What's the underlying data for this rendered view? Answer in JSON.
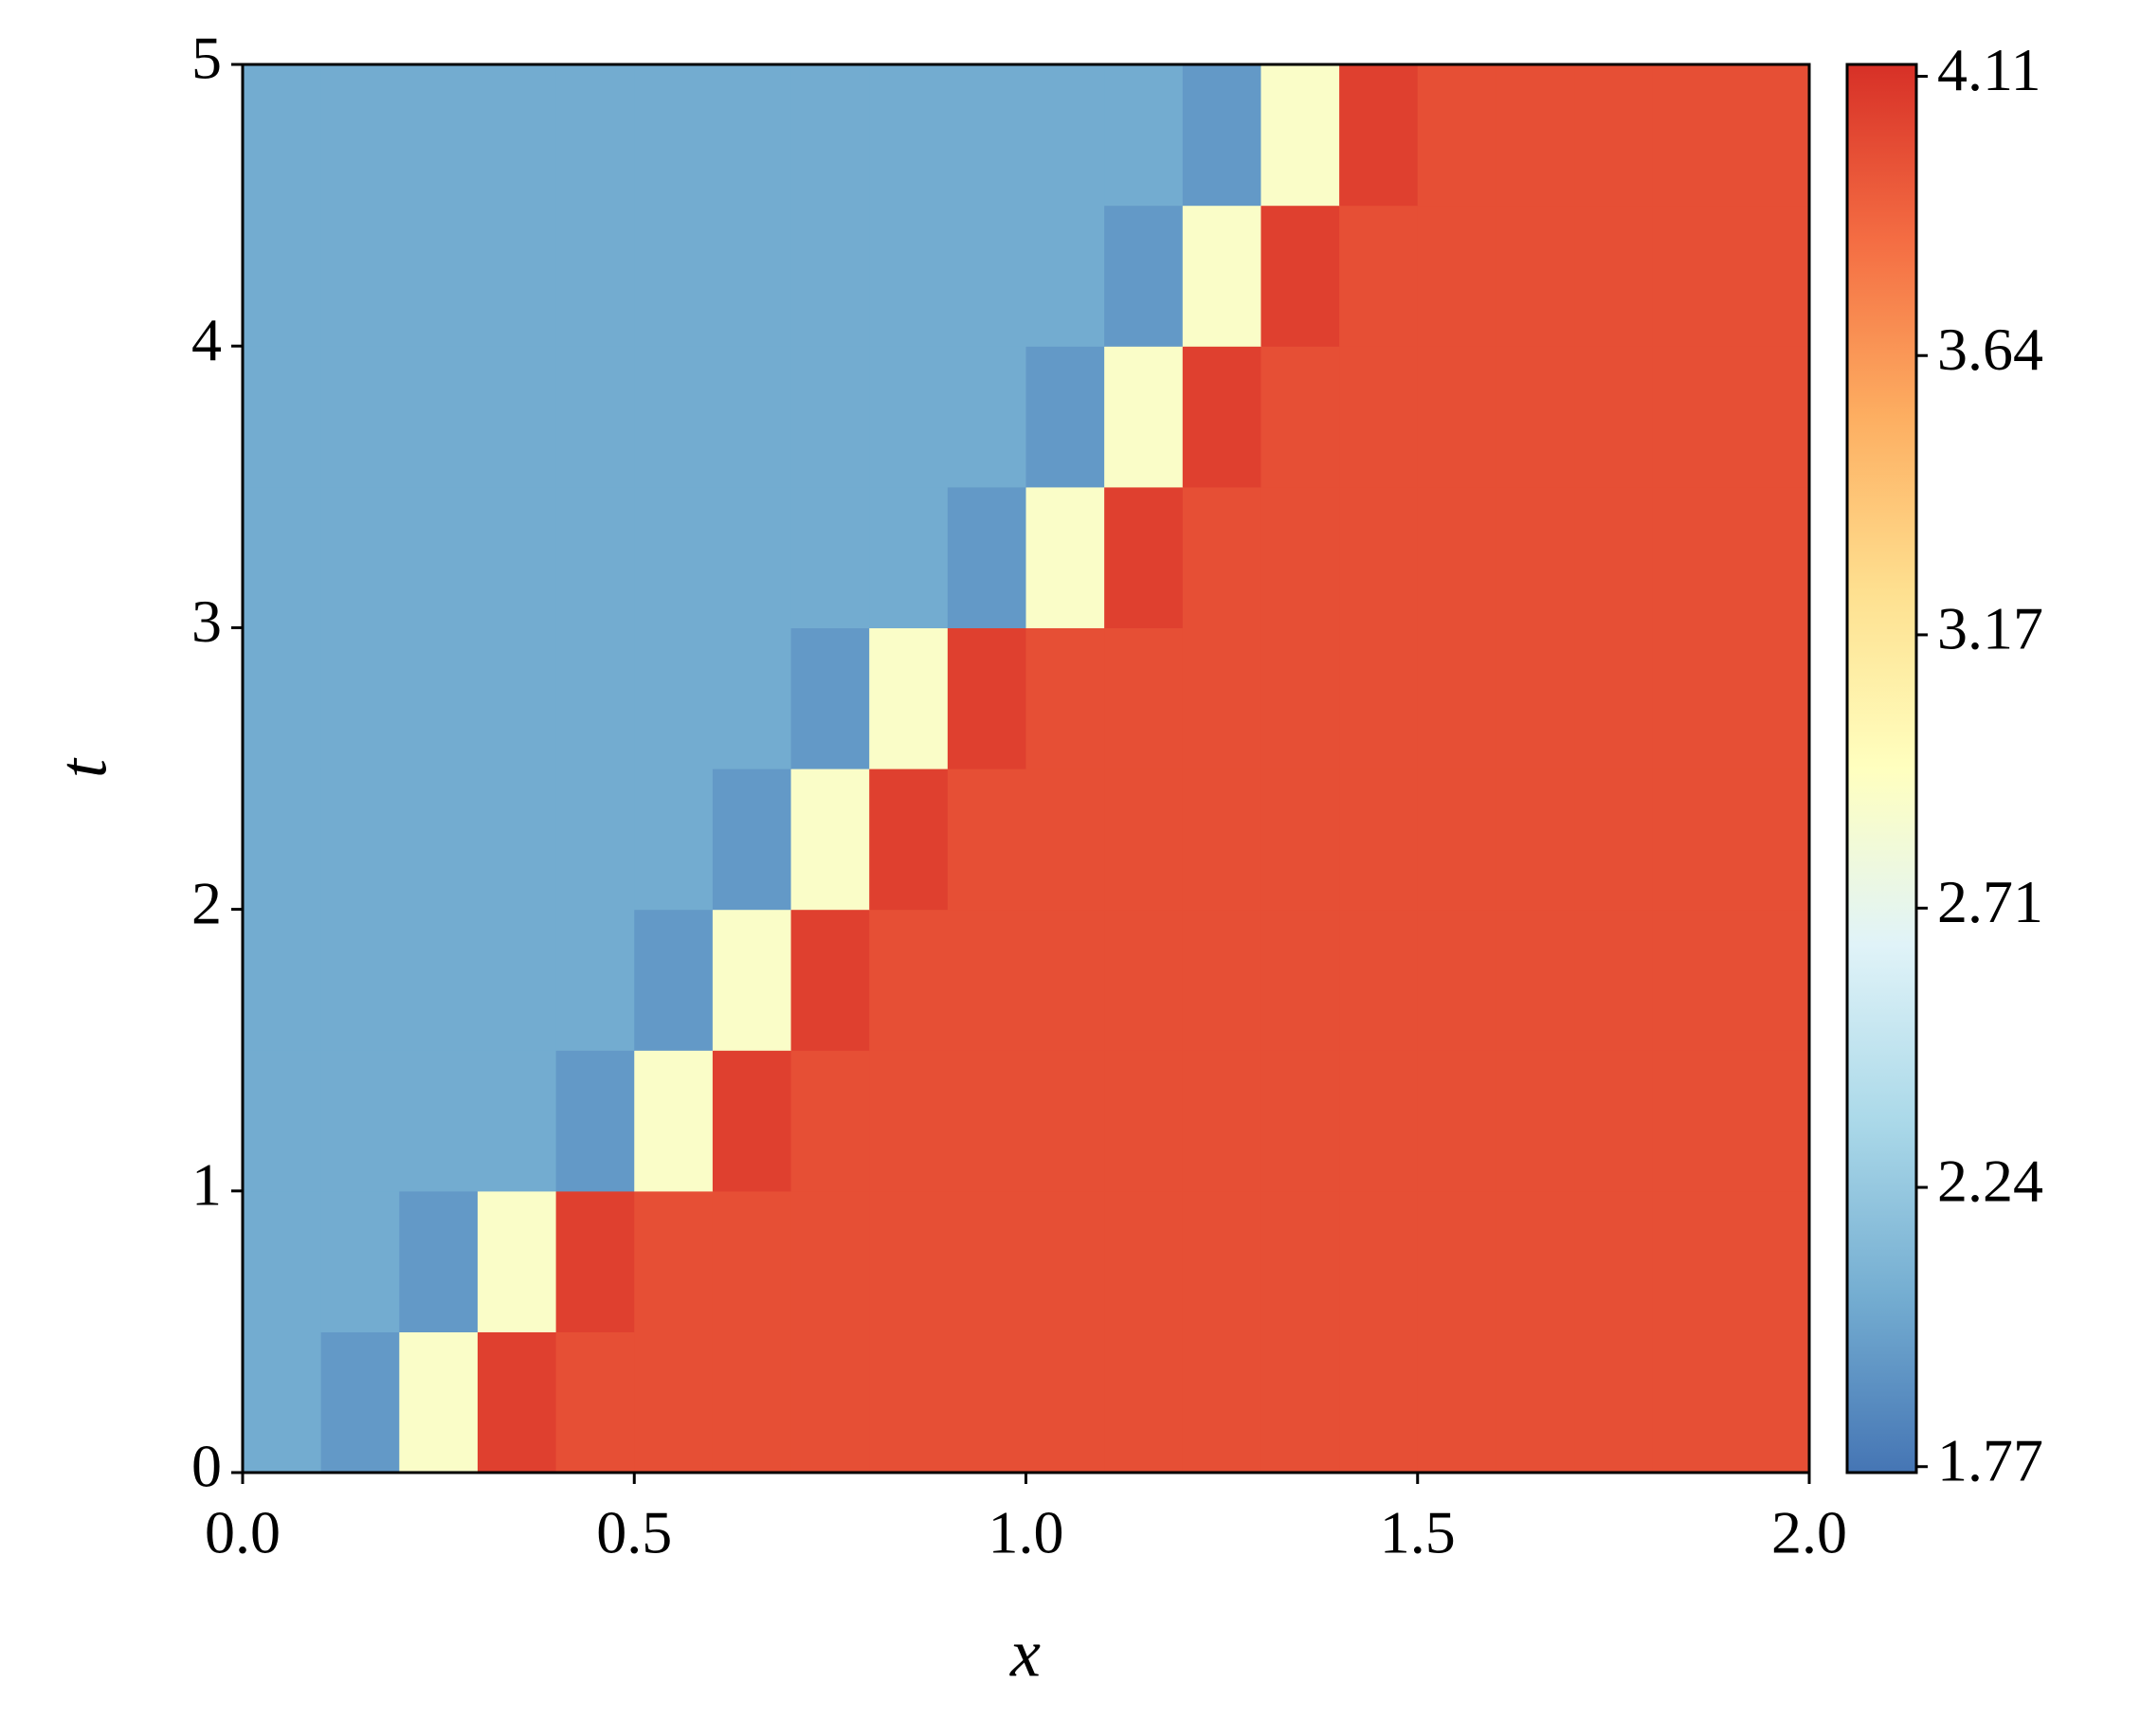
{
  "chart_data": {
    "type": "heatmap",
    "xlabel": "x",
    "ylabel": "t",
    "x": [
      0.05,
      0.15,
      0.25,
      0.35,
      0.45,
      0.55,
      0.65,
      0.75,
      0.85,
      0.95,
      1.05,
      1.15,
      1.25,
      1.35,
      1.45,
      1.55,
      1.65,
      1.75,
      1.85,
      1.95
    ],
    "y": [
      0.25,
      0.75,
      1.25,
      1.75,
      2.25,
      2.75,
      3.25,
      3.75,
      4.25,
      4.75
    ],
    "z": [
      [
        2.05,
        1.95,
        2.9,
        4.05,
        3.98,
        3.98,
        3.98,
        3.98,
        3.98,
        3.98,
        3.98,
        3.98,
        3.98,
        3.98,
        3.98,
        3.98,
        3.98,
        3.98,
        3.98,
        3.98
      ],
      [
        2.05,
        2.05,
        1.95,
        2.9,
        4.05,
        3.98,
        3.98,
        3.98,
        3.98,
        3.98,
        3.98,
        3.98,
        3.98,
        3.98,
        3.98,
        3.98,
        3.98,
        3.98,
        3.98,
        3.98
      ],
      [
        2.05,
        2.05,
        2.05,
        2.05,
        1.95,
        2.9,
        4.05,
        3.98,
        3.98,
        3.98,
        3.98,
        3.98,
        3.98,
        3.98,
        3.98,
        3.98,
        3.98,
        3.98,
        3.98,
        3.98
      ],
      [
        2.05,
        2.05,
        2.05,
        2.05,
        2.05,
        1.95,
        2.9,
        4.05,
        3.98,
        3.98,
        3.98,
        3.98,
        3.98,
        3.98,
        3.98,
        3.98,
        3.98,
        3.98,
        3.98,
        3.98
      ],
      [
        2.05,
        2.05,
        2.05,
        2.05,
        2.05,
        2.05,
        1.95,
        2.9,
        4.05,
        3.98,
        3.98,
        3.98,
        3.98,
        3.98,
        3.98,
        3.98,
        3.98,
        3.98,
        3.98,
        3.98
      ],
      [
        2.05,
        2.05,
        2.05,
        2.05,
        2.05,
        2.05,
        2.05,
        1.95,
        2.9,
        4.05,
        3.98,
        3.98,
        3.98,
        3.98,
        3.98,
        3.98,
        3.98,
        3.98,
        3.98,
        3.98
      ],
      [
        2.05,
        2.05,
        2.05,
        2.05,
        2.05,
        2.05,
        2.05,
        2.05,
        2.05,
        1.95,
        2.9,
        4.05,
        3.98,
        3.98,
        3.98,
        3.98,
        3.98,
        3.98,
        3.98,
        3.98
      ],
      [
        2.05,
        2.05,
        2.05,
        2.05,
        2.05,
        2.05,
        2.05,
        2.05,
        2.05,
        2.05,
        1.95,
        2.9,
        4.05,
        3.98,
        3.98,
        3.98,
        3.98,
        3.98,
        3.98,
        3.98
      ],
      [
        2.05,
        2.05,
        2.05,
        2.05,
        2.05,
        2.05,
        2.05,
        2.05,
        2.05,
        2.05,
        2.05,
        1.95,
        2.9,
        4.05,
        3.98,
        3.98,
        3.98,
        3.98,
        3.98,
        3.98
      ],
      [
        2.05,
        2.05,
        2.05,
        2.05,
        2.05,
        2.05,
        2.05,
        2.05,
        2.05,
        2.05,
        2.05,
        2.05,
        1.95,
        2.9,
        4.05,
        3.98,
        3.98,
        3.98,
        3.98,
        3.98
      ]
    ],
    "xlim": [
      0,
      2
    ],
    "xticks": [
      {
        "value": 0,
        "label": "0.0"
      },
      {
        "value": 0.5,
        "label": "0.5"
      },
      {
        "value": 1,
        "label": "1.0"
      },
      {
        "value": 1.5,
        "label": "1.5"
      },
      {
        "value": 2,
        "label": "2.0"
      }
    ],
    "ylim": [
      0,
      5
    ],
    "yticks": [
      0,
      1,
      2,
      3,
      4,
      5
    ],
    "clim": [
      1.76,
      4.13
    ],
    "cticks": [
      1.77,
      2.24,
      2.71,
      3.17,
      3.64,
      4.11
    ],
    "colormap": [
      "#4575b4",
      "#74add1",
      "#abd9e9",
      "#e0f3f8",
      "#ffffbf",
      "#fee090",
      "#fdae61",
      "#f46d43",
      "#d73027"
    ]
  }
}
